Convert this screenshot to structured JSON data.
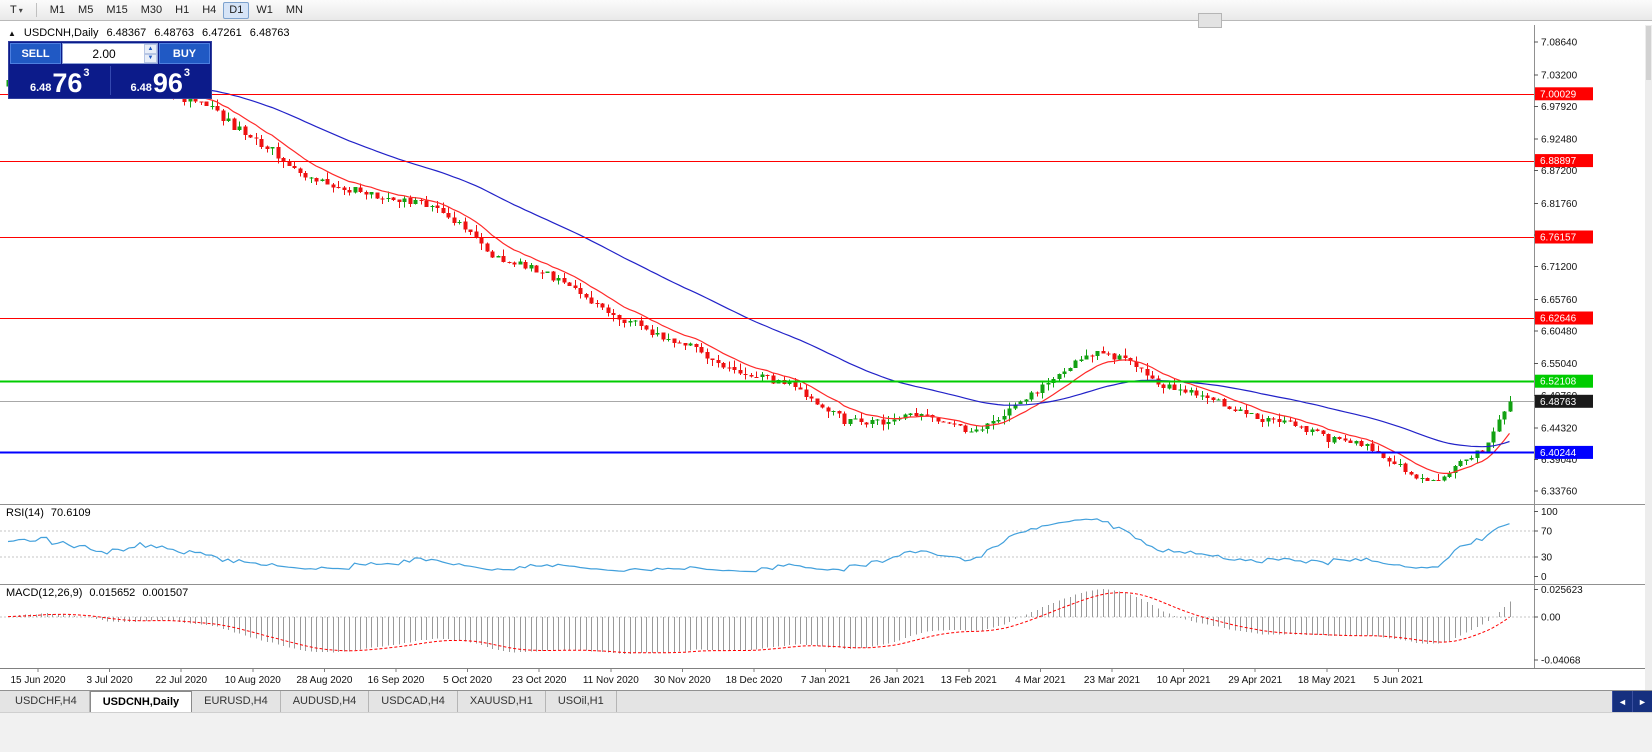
{
  "toolbar": {
    "tool_button": "T",
    "dropdown_caret": "▾",
    "timeframes": [
      "M1",
      "M5",
      "M15",
      "M30",
      "H1",
      "H4",
      "D1",
      "W1",
      "MN"
    ],
    "active_timeframe": "D1"
  },
  "chart_header": {
    "expand_marker": "▲",
    "title": "USDCNH,Daily",
    "open": "6.48367",
    "high": "6.48763",
    "low": "6.47261",
    "close": "6.48763"
  },
  "trade_panel": {
    "sell_label": "SELL",
    "buy_label": "BUY",
    "volume": "2.00",
    "spin_up_icon": "▲",
    "spin_down_icon": "▼",
    "sell_price": {
      "prefix": "6.48",
      "pips": "76",
      "point": "3"
    },
    "buy_price": {
      "prefix": "6.48",
      "pips": "96",
      "point": "3"
    }
  },
  "chart_data": {
    "type": "candlestick",
    "symbol": "USDCNH",
    "timeframe": "Daily",
    "background": "#ffffff",
    "up_color": "#12a112",
    "down_color": "#ee1111",
    "y_domain": [
      6.318,
      7.115
    ],
    "price_axis_ticks": [
      "7.08640",
      "7.03200",
      "6.97920",
      "6.92480",
      "6.87200",
      "6.81760",
      "6.76480",
      "6.71200",
      "6.65760",
      "6.60480",
      "6.55040",
      "6.49760",
      "6.44320",
      "6.39040",
      "6.33760"
    ],
    "horizontal_levels": [
      {
        "value": 7.00029,
        "label": "7.00029",
        "color": "#ff0000",
        "width": 1
      },
      {
        "value": 6.88897,
        "label": "6.88897",
        "color": "#ff0000",
        "width": 1
      },
      {
        "value": 6.76157,
        "label": "6.76157",
        "color": "#ff0000",
        "width": 1
      },
      {
        "value": 6.62646,
        "label": "6.62646",
        "color": "#ff0000",
        "width": 1
      },
      {
        "value": 6.52108,
        "label": "6.52108",
        "color": "#00cc00",
        "width": 2
      },
      {
        "value": 6.40244,
        "label": "6.40244",
        "color": "#0000ff",
        "width": 2
      }
    ],
    "current_price": {
      "value": 6.48763,
      "label": "6.48763",
      "label_bg": "#1a1a1a",
      "line_color": "#a8a8a8"
    },
    "moving_averages": [
      {
        "name": "fast-ma",
        "period": 10,
        "color": "#ff2a2a"
      },
      {
        "name": "slow-ma",
        "period": 45,
        "color": "#2222c8"
      }
    ],
    "visible_candles": 274,
    "trend_anchors": [
      [
        0,
        7.018
      ],
      [
        6,
        7.032
      ],
      [
        12,
        7.018
      ],
      [
        18,
        7.002
      ],
      [
        24,
        7.01
      ],
      [
        30,
        6.998
      ],
      [
        36,
        6.98
      ],
      [
        42,
        6.94
      ],
      [
        48,
        6.905
      ],
      [
        54,
        6.862
      ],
      [
        60,
        6.846
      ],
      [
        68,
        6.826
      ],
      [
        76,
        6.814
      ],
      [
        82,
        6.784
      ],
      [
        88,
        6.732
      ],
      [
        94,
        6.712
      ],
      [
        100,
        6.69
      ],
      [
        106,
        6.654
      ],
      [
        112,
        6.624
      ],
      [
        118,
        6.6
      ],
      [
        124,
        6.58
      ],
      [
        130,
        6.55
      ],
      [
        136,
        6.528
      ],
      [
        142,
        6.518
      ],
      [
        146,
        6.49
      ],
      [
        152,
        6.456
      ],
      [
        158,
        6.452
      ],
      [
        164,
        6.47
      ],
      [
        170,
        6.452
      ],
      [
        176,
        6.438
      ],
      [
        182,
        6.47
      ],
      [
        188,
        6.51
      ],
      [
        194,
        6.552
      ],
      [
        199,
        6.568
      ],
      [
        204,
        6.552
      ],
      [
        210,
        6.515
      ],
      [
        216,
        6.498
      ],
      [
        222,
        6.478
      ],
      [
        228,
        6.456
      ],
      [
        234,
        6.448
      ],
      [
        240,
        6.426
      ],
      [
        246,
        6.415
      ],
      [
        252,
        6.386
      ],
      [
        257,
        6.356
      ],
      [
        261,
        6.362
      ],
      [
        265,
        6.388
      ],
      [
        268,
        6.408
      ],
      [
        270,
        6.438
      ],
      [
        272,
        6.468
      ],
      [
        273,
        6.4876
      ]
    ],
    "date_labels": [
      "15 Jun 2020",
      "3 Jul 2020",
      "22 Jul 2020",
      "10 Aug 2020",
      "28 Aug 2020",
      "16 Sep 2020",
      "5 Oct 2020",
      "23 Oct 2020",
      "11 Nov 2020",
      "30 Nov 2020",
      "18 Dec 2020",
      "7 Jan 2021",
      "26 Jan 2021",
      "13 Feb 2021",
      "4 Mar 2021",
      "23 Mar 2021",
      "10 Apr 2021",
      "29 Apr 2021",
      "18 May 2021",
      "5 Jun 2021"
    ],
    "rsi": {
      "label": "RSI(14)",
      "value": "70.6109",
      "period": 14,
      "levels": [
        70,
        30
      ],
      "axis_ticks": [
        "100",
        "70",
        "30",
        "0"
      ],
      "y_domain": [
        -10,
        110
      ],
      "line_color": "#42a0dc"
    },
    "macd": {
      "label": "MACD(12,26,9)",
      "value_macd": "0.015652",
      "value_signal": "0.001507",
      "fast": 12,
      "slow": 26,
      "signal": 9,
      "axis_ticks": [
        "0.025623",
        "0.00",
        "-0.04068"
      ],
      "y_domain": [
        -0.048,
        0.03
      ],
      "histogram_color": "#9a9a9a",
      "signal_color": "#ff0000"
    }
  },
  "bottom_tabs": {
    "scroll_left_icon": "◄",
    "scroll_right_icon": "►",
    "tabs": [
      {
        "label": "USDCHF,H4",
        "active": false
      },
      {
        "label": "USDCNH,Daily",
        "active": true
      },
      {
        "label": "EURUSD,H4",
        "active": false
      },
      {
        "label": "AUDUSD,H4",
        "active": false
      },
      {
        "label": "USDCAD,H4",
        "active": false
      },
      {
        "label": "XAUUSD,H1",
        "active": false
      },
      {
        "label": "USOil,H1",
        "active": false
      }
    ]
  }
}
